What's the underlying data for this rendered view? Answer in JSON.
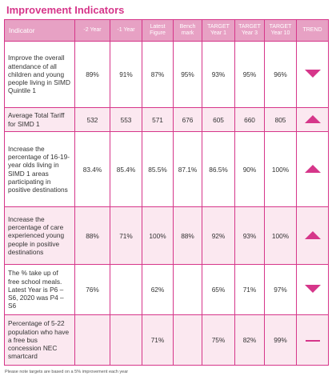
{
  "page_title": "Improvement Indicators",
  "table": {
    "headers": {
      "indicator": "Indicator",
      "minus2": "-2 Year",
      "minus1": "-1 Year",
      "latest_line1": "Latest",
      "latest_line2": "Figure",
      "bench_line1": "Bench",
      "bench_line2": "mark",
      "t1_line1": "TARGET",
      "t1_line2": "Year 1",
      "t3_line1": "TARGET",
      "t3_line2": "Year 3",
      "t10_line1": "TARGET",
      "t10_line2": "Year 10",
      "trend": "TREND"
    },
    "rows": [
      {
        "desc": "Improve the overall attendance of all children and young people living in SIMD Quintile 1",
        "m2": "89%",
        "m1": "91%",
        "latest": "87%",
        "bench": "95%",
        "t1": "93%",
        "t3": "95%",
        "t10": "96%",
        "trend": "down-arrow-icon"
      },
      {
        "desc": "Average Total Tariff for SIMD 1",
        "m2": "532",
        "m1": "553",
        "latest": "571",
        "bench": "676",
        "t1": "605",
        "t3": "660",
        "t10": "805",
        "trend": "up-arrow-icon"
      },
      {
        "desc": "Increase the percentage of 16-19-year olds living in SIMD 1 areas participating in positive destinations",
        "m2": "83.4%",
        "m1": "85.4%",
        "latest": "85.5%",
        "bench": "87.1%",
        "t1": "86.5%",
        "t3": "90%",
        "t10": "100%",
        "trend": "up-arrow-icon"
      },
      {
        "desc": "Increase the percentage of care experienced young people in positive destinations",
        "m2": "88%",
        "m1": "71%",
        "latest": "100%",
        "bench": "88%",
        "t1": "92%",
        "t3": "93%",
        "t10": "100%",
        "trend": "up-arrow-icon"
      },
      {
        "desc": "The % take up of free school meals. Latest Year is P6 – S6, 2020 was P4 – S6",
        "m2": "76%",
        "m1": "",
        "latest": "62%",
        "bench": "",
        "t1": "65%",
        "t3": "71%",
        "t10": "97%",
        "trend": "down-arrow-icon"
      },
      {
        "desc": "Percentage of 5-22 population who have a free bus concession NEC smartcard",
        "m2": "",
        "m1": "",
        "latest": "71%",
        "bench": "",
        "t1": "75%",
        "t3": "82%",
        "t10": "99%",
        "trend": "flat-dash-icon"
      }
    ]
  },
  "footnote": "Please note targets are based on a 5% improvement each year",
  "colors": {
    "accent": "#d6368a",
    "header_bg": "#e7a1c4",
    "shade_row": "#fbe8f0"
  }
}
